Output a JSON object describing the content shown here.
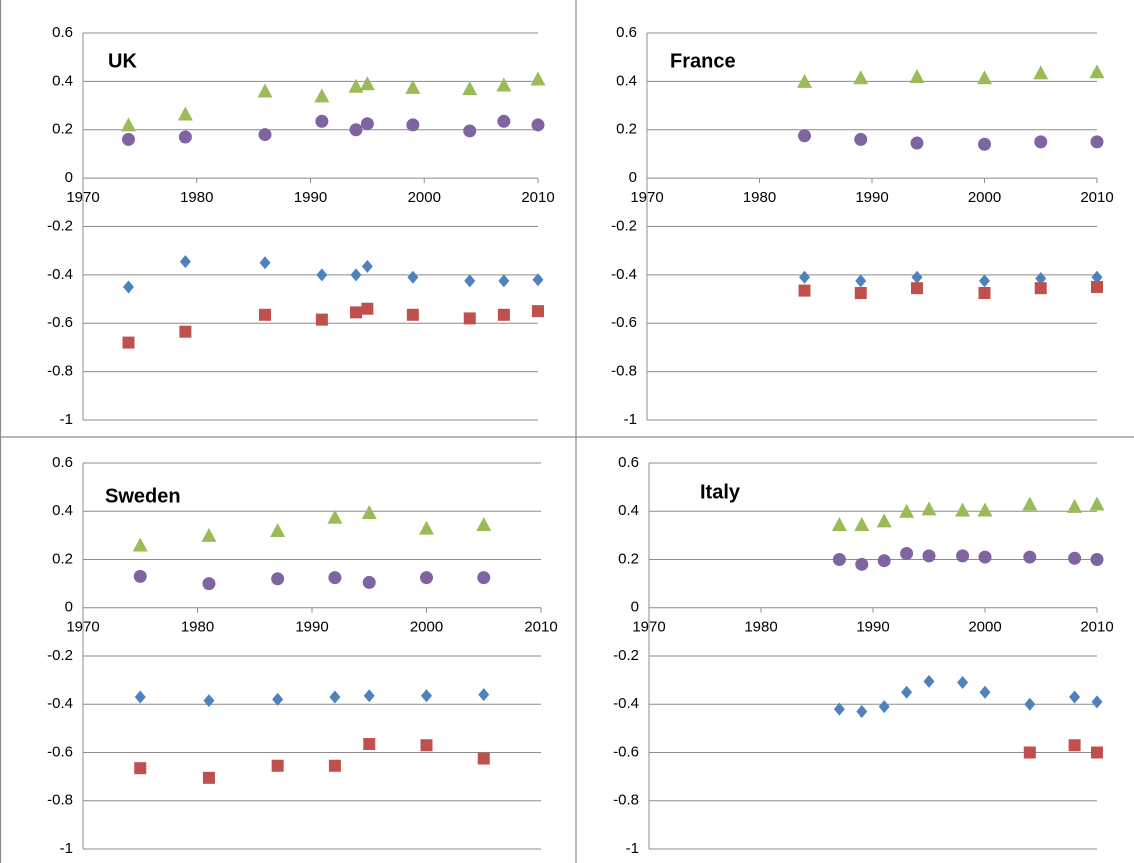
{
  "chart_data": [
    {
      "type": "scatter",
      "title": "UK",
      "xlim": [
        1970,
        2010
      ],
      "xticks": [
        1970,
        1980,
        1990,
        2000,
        2010
      ],
      "ylim": [
        -1,
        0.6
      ],
      "yticks": [
        -1,
        -0.8,
        -0.6,
        -0.4,
        -0.2,
        0,
        0.2,
        0.4,
        0.6
      ],
      "grid": true,
      "series": [
        {
          "marker": "triangle",
          "color": "#9bbb59",
          "x": [
            1974,
            1979,
            1986,
            1991,
            1994,
            1995,
            1999,
            2004,
            2007,
            2010
          ],
          "values": [
            0.22,
            0.265,
            0.36,
            0.34,
            0.38,
            0.39,
            0.375,
            0.37,
            0.385,
            0.41
          ]
        },
        {
          "marker": "circle",
          "color": "#8064a2",
          "x": [
            1974,
            1979,
            1986,
            1991,
            1994,
            1995,
            1999,
            2004,
            2007,
            2010
          ],
          "values": [
            0.16,
            0.17,
            0.18,
            0.235,
            0.2,
            0.225,
            0.22,
            0.195,
            0.235,
            0.22
          ]
        },
        {
          "marker": "diamond",
          "color": "#4f81bd",
          "x": [
            1974,
            1979,
            1986,
            1991,
            1994,
            1995,
            1999,
            2004,
            2007,
            2010
          ],
          "values": [
            -0.45,
            -0.345,
            -0.35,
            -0.4,
            -0.4,
            -0.365,
            -0.41,
            -0.425,
            -0.425,
            -0.42
          ]
        },
        {
          "marker": "square",
          "color": "#c0504d",
          "x": [
            1974,
            1979,
            1986,
            1991,
            1994,
            1995,
            1999,
            2004,
            2007,
            2010
          ],
          "values": [
            -0.68,
            -0.635,
            -0.565,
            -0.585,
            -0.555,
            -0.54,
            -0.565,
            -0.58,
            -0.565,
            -0.55
          ]
        }
      ]
    },
    {
      "type": "scatter",
      "title": "France",
      "xlim": [
        1970,
        2010
      ],
      "xticks": [
        1970,
        1980,
        1990,
        2000,
        2010
      ],
      "ylim": [
        -1,
        0.6
      ],
      "yticks": [
        -1,
        -0.8,
        -0.6,
        -0.4,
        -0.2,
        0,
        0.2,
        0.4,
        0.6
      ],
      "grid": true,
      "series": [
        {
          "marker": "triangle",
          "color": "#9bbb59",
          "x": [
            1984,
            1989,
            1994,
            2000,
            2005,
            2010
          ],
          "values": [
            0.4,
            0.415,
            0.42,
            0.415,
            0.435,
            0.44
          ]
        },
        {
          "marker": "circle",
          "color": "#8064a2",
          "x": [
            1984,
            1989,
            1994,
            2000,
            2005,
            2010
          ],
          "values": [
            0.175,
            0.16,
            0.145,
            0.14,
            0.15,
            0.15
          ]
        },
        {
          "marker": "diamond",
          "color": "#4f81bd",
          "x": [
            1984,
            1989,
            1994,
            2000,
            2005,
            2010
          ],
          "values": [
            -0.41,
            -0.425,
            -0.41,
            -0.425,
            -0.415,
            -0.41
          ]
        },
        {
          "marker": "square",
          "color": "#c0504d",
          "x": [
            1984,
            1989,
            1994,
            2000,
            2005,
            2010
          ],
          "values": [
            -0.465,
            -0.475,
            -0.455,
            -0.475,
            -0.455,
            -0.45
          ]
        }
      ]
    },
    {
      "type": "scatter",
      "title": "Sweden",
      "xlim": [
        1970,
        2010
      ],
      "xticks": [
        1970,
        1980,
        1990,
        2000,
        2010
      ],
      "ylim": [
        -1,
        0.6
      ],
      "yticks": [
        -1,
        -0.8,
        -0.6,
        -0.4,
        -0.2,
        0,
        0.2,
        0.4,
        0.6
      ],
      "grid": true,
      "series": [
        {
          "marker": "triangle",
          "color": "#9bbb59",
          "x": [
            1975,
            1981,
            1987,
            1992,
            1995,
            2000,
            2005
          ],
          "values": [
            0.26,
            0.3,
            0.32,
            0.375,
            0.395,
            0.33,
            0.345
          ]
        },
        {
          "marker": "circle",
          "color": "#8064a2",
          "x": [
            1975,
            1981,
            1987,
            1992,
            1995,
            2000,
            2005
          ],
          "values": [
            0.13,
            0.1,
            0.12,
            0.125,
            0.105,
            0.125,
            0.125
          ]
        },
        {
          "marker": "diamond",
          "color": "#4f81bd",
          "x": [
            1975,
            1981,
            1987,
            1992,
            1995,
            2000,
            2005
          ],
          "values": [
            -0.37,
            -0.385,
            -0.38,
            -0.37,
            -0.365,
            -0.365,
            -0.36
          ]
        },
        {
          "marker": "square",
          "color": "#c0504d",
          "x": [
            1975,
            1981,
            1987,
            1992,
            1995,
            2000,
            2005
          ],
          "values": [
            -0.665,
            -0.705,
            -0.655,
            -0.655,
            -0.565,
            -0.57,
            -0.625
          ]
        }
      ]
    },
    {
      "type": "scatter",
      "title": "Italy",
      "xlim": [
        1970,
        2010
      ],
      "xticks": [
        1970,
        1980,
        1990,
        2000,
        2010
      ],
      "ylim": [
        -1,
        0.6
      ],
      "yticks": [
        -1,
        -0.8,
        -0.6,
        -0.4,
        -0.2,
        0,
        0.2,
        0.4,
        0.6
      ],
      "grid": true,
      "series": [
        {
          "marker": "triangle",
          "color": "#9bbb59",
          "x": [
            1987,
            1989,
            1991,
            1993,
            1995,
            1998,
            2000,
            2004,
            2008,
            2010
          ],
          "values": [
            0.345,
            0.345,
            0.36,
            0.4,
            0.41,
            0.405,
            0.405,
            0.43,
            0.42,
            0.43
          ]
        },
        {
          "marker": "circle",
          "color": "#8064a2",
          "x": [
            1987,
            1989,
            1991,
            1993,
            1995,
            1998,
            2000,
            2004,
            2008,
            2010
          ],
          "values": [
            0.2,
            0.18,
            0.195,
            0.225,
            0.215,
            0.215,
            0.21,
            0.21,
            0.205,
            0.2
          ]
        },
        {
          "marker": "diamond",
          "color": "#4f81bd",
          "x": [
            1987,
            1989,
            1991,
            1993,
            1995,
            1998,
            2000,
            2004,
            2008,
            2010
          ],
          "values": [
            -0.42,
            -0.43,
            -0.41,
            -0.35,
            -0.305,
            -0.31,
            -0.35,
            -0.4,
            -0.37,
            -0.39
          ]
        },
        {
          "marker": "square",
          "color": "#c0504d",
          "x": [
            2004,
            2008,
            2010
          ],
          "values": [
            -0.6,
            -0.57,
            -0.6
          ]
        }
      ]
    }
  ]
}
